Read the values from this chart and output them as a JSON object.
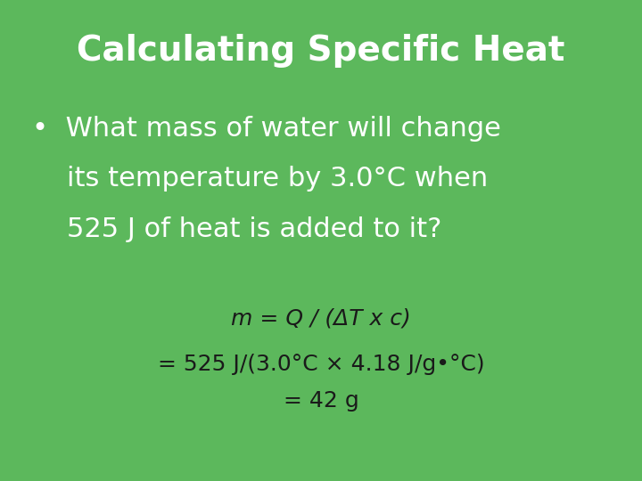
{
  "background_color": "#5cb85c",
  "title": "Calculating Specific Heat",
  "title_color": "#ffffff",
  "title_fontsize": 28,
  "bullet_line1": "•  What mass of water will change",
  "bullet_line2": "    its temperature by 3.0°C when",
  "bullet_line3": "    525 J of heat is added to it?",
  "bullet_fontsize": 22,
  "bullet_color": "#ffffff",
  "formula_line1": "m = Q / (ΔT x c)",
  "formula_line2": "= 525 J/(3.0°C × 4.18 J/g•°C)",
  "formula_line3": "= 42 g",
  "formula_fontsize": 18,
  "formula_color": "#1a1a1a",
  "fig_width": 7.2,
  "fig_height": 5.4,
  "dpi": 100
}
